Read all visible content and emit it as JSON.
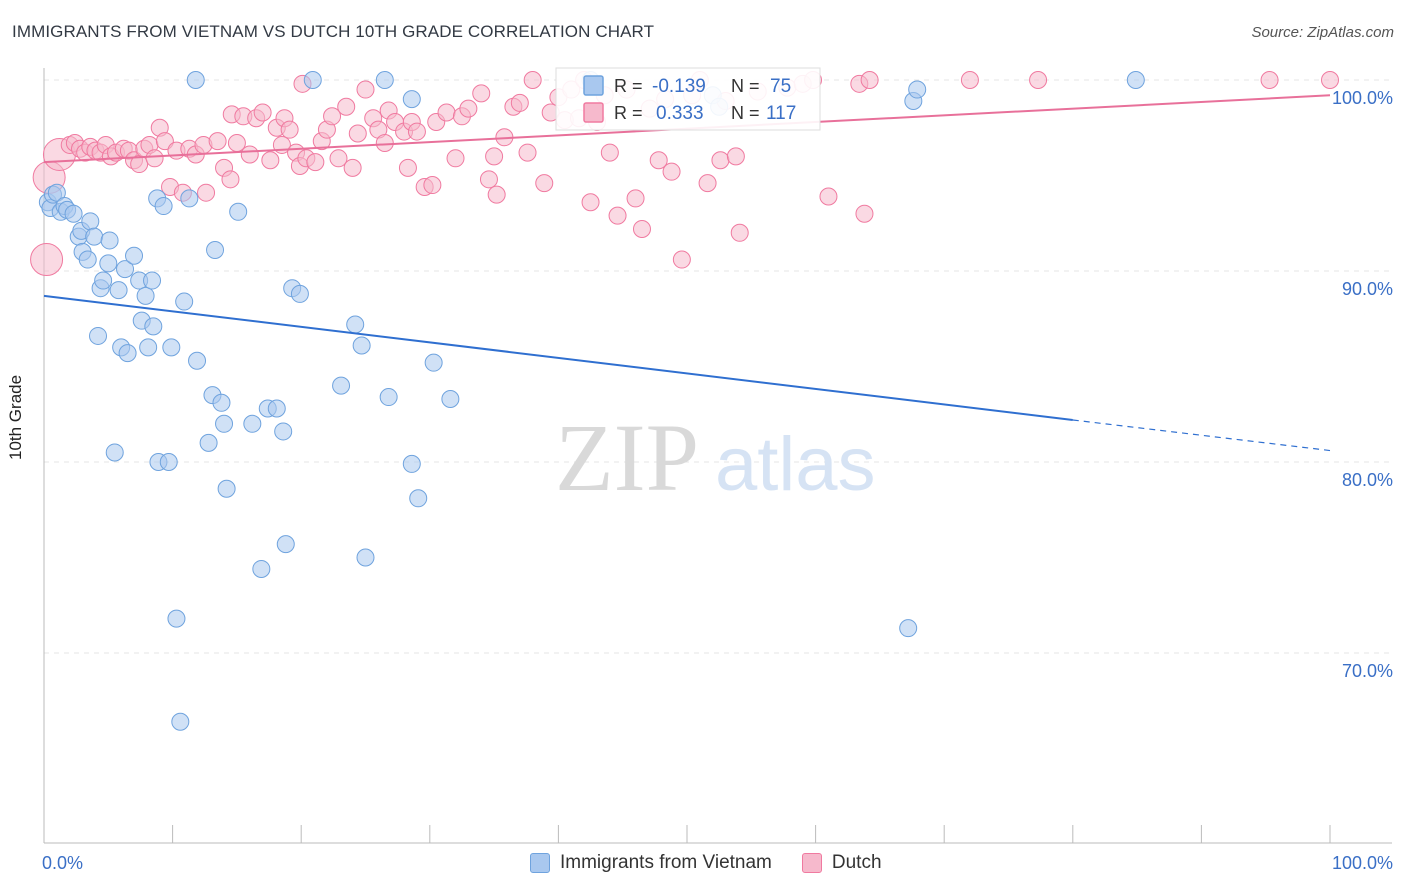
{
  "title": "IMMIGRANTS FROM VIETNAM VS DUTCH 10TH GRADE CORRELATION CHART",
  "source": "Source: ZipAtlas.com",
  "watermark": {
    "zip": "ZIP",
    "atlas": "atlas"
  },
  "colors": {
    "blue": "#6fa3de",
    "blue_fill": "#a9c8ef",
    "blue_line": "#2f6fd0",
    "pink": "#f07aa0",
    "pink_fill": "#f6b9cc",
    "pink_line": "#e8709a",
    "axis_text": "#3a6fc6"
  },
  "legend_top": {
    "rows": [
      {
        "r_label": "R =",
        "r_value": "-0.139",
        "n_label": "N =",
        "n_value": "75"
      },
      {
        "r_label": "R =",
        "r_value": "0.333",
        "n_label": "N =",
        "n_value": "117"
      }
    ]
  },
  "legend_bottom": [
    "Immigrants from Vietnam",
    "Dutch"
  ],
  "chart_data": {
    "type": "scatter",
    "title": "IMMIGRANTS FROM VIETNAM VS DUTCH 10TH GRADE CORRELATION CHART",
    "xlabel": "",
    "ylabel": "10th Grade",
    "xlim": [
      0,
      100
    ],
    "ylim": [
      60.5,
      101.5
    ],
    "x_ticks": [
      "0.0%",
      "100.0%"
    ],
    "y_ticks": [
      {
        "value": 100,
        "label": "100.0%"
      },
      {
        "value": 90,
        "label": "90.0%"
      },
      {
        "value": 80,
        "label": "80.0%"
      },
      {
        "value": 70,
        "label": "70.0%"
      }
    ],
    "grid": true,
    "series": [
      {
        "name": "Immigrants from Vietnam",
        "r": -0.139,
        "n": 75,
        "trend": {
          "x0": 0,
          "y0": 88.7,
          "x1": 80,
          "y1": 82.2,
          "dash_to_x": 100,
          "dash_to_y": 80.6
        },
        "points": [
          [
            0.3,
            93.6
          ],
          [
            0.5,
            93.3
          ],
          [
            0.7,
            94.0
          ],
          [
            1.0,
            94.1
          ],
          [
            1.3,
            93.1
          ],
          [
            1.6,
            93.4
          ],
          [
            1.8,
            93.2
          ],
          [
            2.3,
            93.0
          ],
          [
            2.7,
            91.8
          ],
          [
            2.9,
            92.1
          ],
          [
            3.0,
            91.0
          ],
          [
            3.4,
            90.6
          ],
          [
            3.6,
            92.6
          ],
          [
            3.9,
            91.8
          ],
          [
            4.2,
            86.6
          ],
          [
            4.4,
            89.1
          ],
          [
            4.6,
            89.5
          ],
          [
            5.1,
            91.6
          ],
          [
            5.0,
            90.4
          ],
          [
            5.5,
            80.5
          ],
          [
            5.8,
            89.0
          ],
          [
            6.0,
            86.0
          ],
          [
            6.3,
            90.1
          ],
          [
            6.5,
            85.7
          ],
          [
            7.0,
            90.8
          ],
          [
            7.4,
            89.5
          ],
          [
            7.6,
            87.4
          ],
          [
            7.9,
            88.7
          ],
          [
            8.1,
            86.0
          ],
          [
            8.4,
            89.5
          ],
          [
            8.5,
            87.1
          ],
          [
            8.9,
            80.0
          ],
          [
            8.8,
            93.8
          ],
          [
            9.3,
            93.4
          ],
          [
            9.7,
            80.0
          ],
          [
            9.9,
            86.0
          ],
          [
            10.3,
            71.8
          ],
          [
            10.6,
            66.4
          ],
          [
            10.9,
            88.4
          ],
          [
            11.3,
            93.8
          ],
          [
            11.8,
            100.0
          ],
          [
            11.9,
            85.3
          ],
          [
            12.8,
            81.0
          ],
          [
            13.1,
            83.5
          ],
          [
            13.3,
            91.1
          ],
          [
            13.8,
            83.1
          ],
          [
            14.0,
            82.0
          ],
          [
            14.2,
            78.6
          ],
          [
            15.1,
            93.1
          ],
          [
            16.2,
            82.0
          ],
          [
            16.9,
            74.4
          ],
          [
            17.4,
            82.8
          ],
          [
            18.1,
            82.8
          ],
          [
            18.6,
            81.6
          ],
          [
            18.8,
            75.7
          ],
          [
            19.3,
            89.1
          ],
          [
            19.9,
            88.8
          ],
          [
            20.9,
            100.0
          ],
          [
            23.1,
            84.0
          ],
          [
            24.2,
            87.2
          ],
          [
            24.7,
            86.1
          ],
          [
            25.0,
            75.0
          ],
          [
            26.5,
            100.0
          ],
          [
            26.8,
            83.4
          ],
          [
            28.6,
            99.0
          ],
          [
            28.6,
            79.9
          ],
          [
            29.1,
            78.1
          ],
          [
            30.3,
            85.2
          ],
          [
            31.6,
            83.3
          ],
          [
            42.5,
            100.0
          ],
          [
            52.0,
            99.2
          ],
          [
            52.5,
            98.6
          ],
          [
            67.2,
            71.3
          ],
          [
            67.6,
            98.9
          ],
          [
            67.9,
            99.5
          ],
          [
            84.9,
            100.0
          ]
        ]
      },
      {
        "name": "Dutch",
        "r": 0.333,
        "n": 117,
        "trend": {
          "x0": 0,
          "y0": 95.7,
          "x1": 100,
          "y1": 99.2
        },
        "points": [
          [
            0.2,
            90.6
          ],
          [
            0.4,
            94.9
          ],
          [
            1.2,
            96.1
          ],
          [
            2.0,
            96.6
          ],
          [
            2.4,
            96.7
          ],
          [
            2.8,
            96.4
          ],
          [
            3.2,
            96.2
          ],
          [
            3.6,
            96.5
          ],
          [
            4.0,
            96.3
          ],
          [
            4.4,
            96.2
          ],
          [
            4.8,
            96.6
          ],
          [
            5.2,
            96.0
          ],
          [
            5.6,
            96.2
          ],
          [
            6.2,
            96.4
          ],
          [
            6.6,
            96.3
          ],
          [
            7.0,
            95.8
          ],
          [
            7.4,
            95.6
          ],
          [
            7.8,
            96.4
          ],
          [
            8.2,
            96.6
          ],
          [
            8.6,
            95.9
          ],
          [
            9.0,
            97.5
          ],
          [
            9.4,
            96.8
          ],
          [
            9.8,
            94.4
          ],
          [
            10.3,
            96.3
          ],
          [
            10.8,
            94.1
          ],
          [
            11.3,
            96.4
          ],
          [
            11.8,
            96.1
          ],
          [
            12.4,
            96.6
          ],
          [
            12.6,
            94.1
          ],
          [
            13.5,
            96.8
          ],
          [
            14.0,
            95.4
          ],
          [
            14.5,
            94.8
          ],
          [
            14.6,
            98.2
          ],
          [
            15.0,
            96.7
          ],
          [
            15.5,
            98.1
          ],
          [
            16.0,
            96.1
          ],
          [
            16.5,
            98.0
          ],
          [
            17.0,
            98.3
          ],
          [
            17.6,
            95.8
          ],
          [
            18.1,
            97.5
          ],
          [
            18.5,
            96.6
          ],
          [
            18.7,
            98.0
          ],
          [
            19.1,
            97.4
          ],
          [
            19.6,
            96.2
          ],
          [
            19.9,
            95.5
          ],
          [
            20.4,
            95.9
          ],
          [
            21.1,
            95.7
          ],
          [
            21.6,
            96.8
          ],
          [
            22.0,
            97.4
          ],
          [
            22.4,
            98.1
          ],
          [
            22.9,
            95.9
          ],
          [
            23.5,
            98.6
          ],
          [
            24.0,
            95.4
          ],
          [
            24.4,
            97.2
          ],
          [
            25.0,
            99.5
          ],
          [
            25.6,
            98.0
          ],
          [
            26.0,
            97.4
          ],
          [
            26.5,
            96.7
          ],
          [
            26.8,
            98.4
          ],
          [
            27.3,
            97.8
          ],
          [
            28.0,
            97.3
          ],
          [
            28.3,
            95.4
          ],
          [
            28.6,
            97.8
          ],
          [
            29.0,
            97.3
          ],
          [
            29.6,
            94.4
          ],
          [
            30.2,
            94.5
          ],
          [
            30.5,
            97.8
          ],
          [
            31.3,
            98.3
          ],
          [
            32.0,
            95.9
          ],
          [
            32.5,
            98.1
          ],
          [
            33.0,
            98.5
          ],
          [
            34.0,
            99.3
          ],
          [
            34.6,
            94.8
          ],
          [
            35.0,
            96.0
          ],
          [
            35.2,
            94.0
          ],
          [
            35.8,
            97.0
          ],
          [
            36.5,
            98.6
          ],
          [
            37.0,
            98.8
          ],
          [
            37.6,
            96.2
          ],
          [
            38.0,
            100.0
          ],
          [
            38.9,
            94.6
          ],
          [
            39.4,
            98.3
          ],
          [
            40.0,
            99.1
          ],
          [
            40.5,
            97.9
          ],
          [
            41.0,
            99.5
          ],
          [
            41.6,
            98.0
          ],
          [
            42.0,
            100.0
          ],
          [
            42.5,
            93.6
          ],
          [
            43.0,
            97.8
          ],
          [
            43.6,
            99.2
          ],
          [
            44.0,
            96.2
          ],
          [
            44.6,
            92.9
          ],
          [
            45.3,
            99.5
          ],
          [
            46.0,
            93.8
          ],
          [
            46.5,
            92.2
          ],
          [
            47.1,
            98.5
          ],
          [
            47.8,
            95.8
          ],
          [
            48.3,
            99.0
          ],
          [
            48.8,
            95.2
          ],
          [
            49.6,
            90.6
          ],
          [
            50.4,
            99.2
          ],
          [
            51.0,
            100.0
          ],
          [
            51.6,
            94.6
          ],
          [
            52.6,
            95.8
          ],
          [
            53.0,
            98.9
          ],
          [
            53.8,
            96.0
          ],
          [
            54.1,
            92.0
          ],
          [
            55.5,
            99.4
          ],
          [
            57.8,
            99.6
          ],
          [
            59.0,
            99.8
          ],
          [
            59.8,
            100.0
          ],
          [
            61.0,
            93.9
          ],
          [
            63.4,
            99.8
          ],
          [
            63.8,
            93.0
          ],
          [
            64.2,
            100.0
          ],
          [
            72.0,
            100.0
          ],
          [
            77.3,
            100.0
          ],
          [
            95.3,
            100.0
          ],
          [
            100.0,
            100.0
          ],
          [
            20.1,
            99.8
          ]
        ]
      }
    ]
  }
}
